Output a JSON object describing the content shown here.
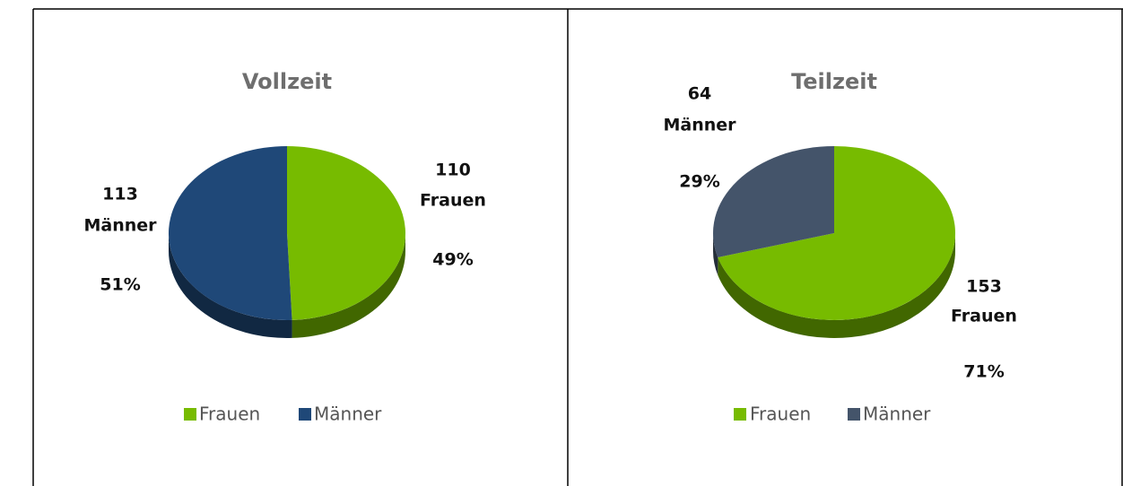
{
  "chart_data": [
    {
      "type": "pie",
      "title": "Vollzeit",
      "categories": [
        "Frauen",
        "Männer"
      ],
      "values": [
        110,
        113
      ],
      "category_labels": [
        "Frauen",
        "Männer"
      ],
      "percent_labels": [
        "49%",
        "51%"
      ],
      "colors": [
        "#77bb00",
        "#1f4878"
      ],
      "legend": "bottom"
    },
    {
      "type": "pie",
      "title": "Teilzeit",
      "categories": [
        "Frauen",
        "Männer"
      ],
      "values": [
        153,
        64
      ],
      "category_labels": [
        "Frauen",
        "Männer"
      ],
      "percent_labels": [
        "71%",
        "29%"
      ],
      "colors": [
        "#77bb00",
        "#44546a"
      ],
      "legend": "bottom"
    }
  ]
}
